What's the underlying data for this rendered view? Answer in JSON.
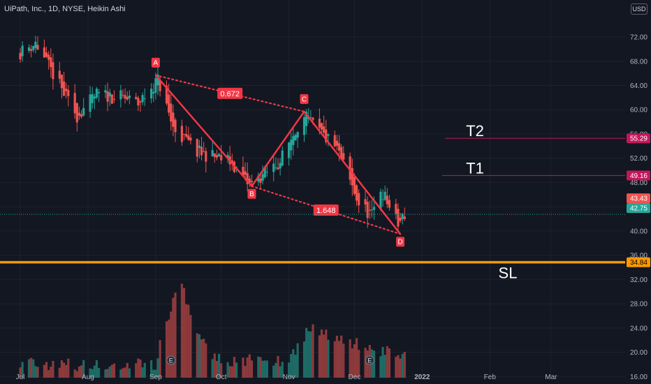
{
  "header": {
    "title": "UiPath, Inc., 1D, NYSE, Heikin Ashi",
    "currency": "USD"
  },
  "colors": {
    "background": "#131722",
    "up": "#26a69a",
    "down": "#ef5350",
    "volume_up": "#1e6b65",
    "volume_down": "#8c3a3c",
    "pattern": "#f23645",
    "stop_loss": "#ff9800",
    "target_line": "#c2185b",
    "text": "#d1d4dc",
    "axis_text": "#b2b5be"
  },
  "chart_data": {
    "type": "candlestick",
    "style": "Heikin Ashi",
    "interval": "1D",
    "symbol": "UiPath, Inc.",
    "exchange": "NYSE",
    "currency": "USD",
    "price_range": [
      15.8,
      75.0
    ],
    "price_ticks": [
      "72.00",
      "68.00",
      "64.00",
      "60.00",
      "56.00",
      "52.00",
      "48.00",
      "44.00",
      "40.00",
      "36.00",
      "32.00",
      "28.00",
      "24.00",
      "20.00",
      "16.00"
    ],
    "x_labels": [
      "Jul",
      "Aug",
      "Sep",
      "Oct",
      "Nov",
      "Dec",
      "2022",
      "Feb",
      "Mar"
    ],
    "grid": true,
    "key_points": [
      {
        "date": "2021-07-01",
        "close": 69.5
      },
      {
        "date": "2021-07-08",
        "close": 71.0
      },
      {
        "date": "2021-07-22",
        "close": 62.0
      },
      {
        "date": "2021-07-27",
        "close": 59.0
      },
      {
        "date": "2021-08-05",
        "close": 62.5
      },
      {
        "date": "2021-08-17",
        "close": 62.0
      },
      {
        "date": "2021-08-24",
        "close": 61.0
      },
      {
        "date": "2021-09-02",
        "close": 65.0
      },
      {
        "date": "2021-09-09",
        "close": 57.0
      },
      {
        "date": "2021-09-20",
        "close": 53.0
      },
      {
        "date": "2021-10-05",
        "close": 51.5
      },
      {
        "date": "2021-10-14",
        "close": 47.5
      },
      {
        "date": "2021-10-28",
        "close": 51.5
      },
      {
        "date": "2021-11-05",
        "close": 57.5
      },
      {
        "date": "2021-11-09",
        "close": 58.5
      },
      {
        "date": "2021-11-23",
        "close": 53.5
      },
      {
        "date": "2021-12-03",
        "close": 44.5
      },
      {
        "date": "2021-12-09",
        "close": 42.5
      },
      {
        "date": "2021-12-13",
        "close": 47.0
      },
      {
        "date": "2021-12-21",
        "close": 41.0
      },
      {
        "date": "2021-12-24",
        "close": 42.75
      }
    ],
    "volume_profile": [
      {
        "date": "2021-07-01",
        "volume": 18.5
      },
      {
        "date": "2021-08-01",
        "volume": 17.6
      },
      {
        "date": "2021-09-01",
        "volume": 18.2
      },
      {
        "date": "2021-09-09",
        "volume": 29.0
      },
      {
        "date": "2021-09-13",
        "volume": 31.0
      },
      {
        "date": "2021-09-20",
        "volume": 22.5
      },
      {
        "date": "2021-10-01",
        "volume": 18.5
      },
      {
        "date": "2021-11-01",
        "volume": 18.8
      },
      {
        "date": "2021-11-10",
        "volume": 24.0
      },
      {
        "date": "2021-12-06",
        "volume": 21.0
      },
      {
        "date": "2021-12-24",
        "volume": 19.5
      }
    ],
    "harmonic_pattern": {
      "points": [
        {
          "label": "A",
          "date": "2021-09-01",
          "price": 65.7
        },
        {
          "label": "B",
          "date": "2021-10-15",
          "price": 47.4
        },
        {
          "label": "C",
          "date": "2021-11-08",
          "price": 59.7
        },
        {
          "label": "D",
          "date": "2021-12-22",
          "price": 39.5
        }
      ],
      "ratios": [
        {
          "label": "0.672",
          "from": "A",
          "to": "C"
        },
        {
          "label": "1.648",
          "from": "B",
          "to": "D"
        }
      ]
    },
    "earnings_markers": [
      {
        "label": "E",
        "date": "2021-09-08"
      },
      {
        "label": "E",
        "date": "2021-12-08"
      }
    ],
    "horizontal_lines": [
      {
        "label": "T2",
        "price": 55.29
      },
      {
        "label": "T1",
        "price": 49.16
      },
      {
        "label": "SL",
        "price": 34.84
      }
    ],
    "price_tags": [
      {
        "value": "55.29",
        "kind": "T2"
      },
      {
        "value": "49.16",
        "kind": "T1"
      },
      {
        "value": "43.43",
        "kind": "prev"
      },
      {
        "value": "42.75",
        "kind": "last"
      },
      {
        "value": "34.84",
        "kind": "SL"
      }
    ],
    "last_price": 42.75,
    "previous_close": 43.43
  }
}
